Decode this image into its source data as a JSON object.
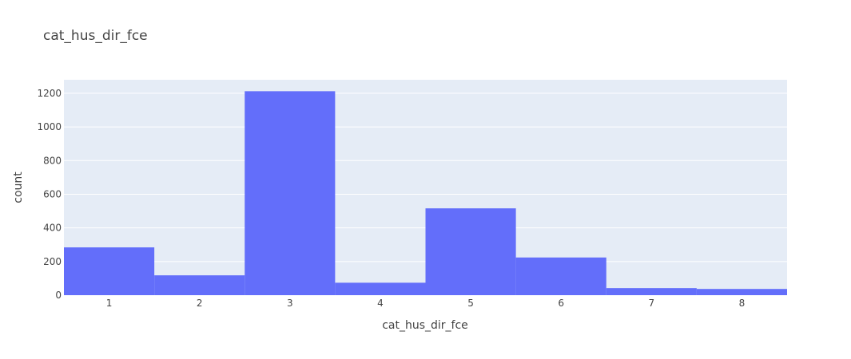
{
  "chart_data": {
    "type": "bar",
    "title": "cat_hus_dir_fce",
    "xlabel": "cat_hus_dir_fce",
    "ylabel": "count",
    "categories": [
      "1",
      "2",
      "3",
      "4",
      "5",
      "6",
      "7",
      "8"
    ],
    "values": [
      284,
      118,
      1212,
      74,
      516,
      224,
      42,
      37
    ],
    "ylim": [
      0,
      1280
    ],
    "yticks": [
      0,
      200,
      400,
      600,
      800,
      1000,
      1200
    ],
    "grid": true,
    "colors": {
      "bar": "#636efa",
      "plot_bg": "#e5ecf6",
      "grid": "#ffffff",
      "text": "#444444"
    }
  }
}
